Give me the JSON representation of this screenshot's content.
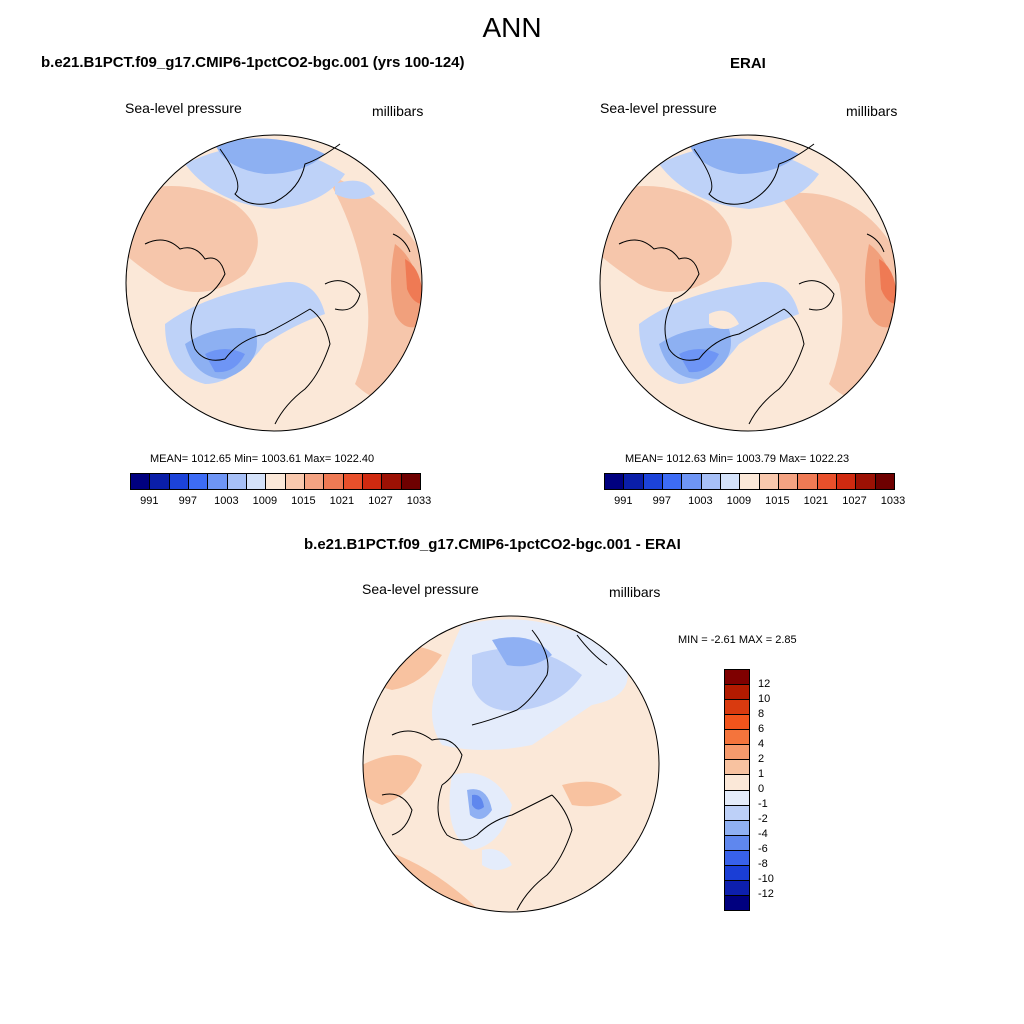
{
  "title": "ANN",
  "panels": [
    {
      "title": "b.e21.B1PCT.f09_g17.CMIP6-1pctCO2-bgc.001 (yrs 100-124)",
      "left_label": "Sea-level pressure",
      "right_label": "millibars",
      "stats": "MEAN= 1012.65  Min= 1003.61  Max= 1022.40"
    },
    {
      "title": "ERAI",
      "left_label": "Sea-level pressure",
      "right_label": "millibars",
      "stats": "MEAN= 1012.63  Min= 1003.79  Max= 1022.23"
    },
    {
      "title": "b.e21.B1PCT.f09_g17.CMIP6-1pctCO2-bgc.001 - ERAI",
      "left_label": "Sea-level pressure",
      "right_label": "millibars",
      "stats": "MIN =  -2.61 MAX =   2.85"
    }
  ],
  "colorbar_abs": {
    "labels": [
      "991",
      "997",
      "1003",
      "1009",
      "1015",
      "1021",
      "1027",
      "1033"
    ],
    "colors": [
      "#00007f",
      "#0a1ea8",
      "#1c43d9",
      "#3d6cf5",
      "#6e95f5",
      "#a7c0f7",
      "#d4e2fa",
      "#fbe8d8",
      "#f9c9ae",
      "#f4a382",
      "#ef7a54",
      "#e8502b",
      "#d02a10",
      "#9c1104",
      "#6e0000"
    ]
  },
  "colorbar_diff": {
    "labels": [
      "12",
      "10",
      "8",
      "6",
      "4",
      "2",
      "1",
      "0",
      "-1",
      "-2",
      "-4",
      "-6",
      "-8",
      "-10",
      "-12"
    ],
    "colors": [
      "#7f0000",
      "#b21a00",
      "#d93a0f",
      "#f2541c",
      "#f4743c",
      "#f69a6c",
      "#f8c2a0",
      "#fbe8d8",
      "#e4ecfb",
      "#bdd0f8",
      "#8fb0f3",
      "#5f87ee",
      "#3861ea",
      "#1a3ed6",
      "#0d1fae",
      "#00007f"
    ]
  }
}
